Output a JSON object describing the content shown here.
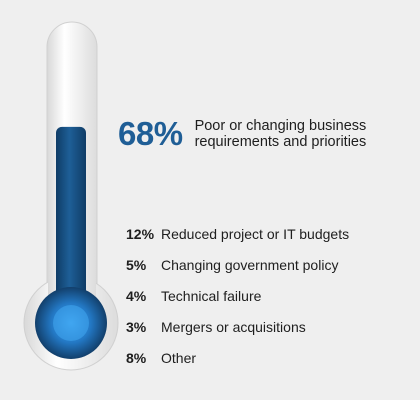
{
  "chart_data": {
    "type": "thermometer",
    "headline": {
      "value": 68,
      "label_pct": "68%",
      "label": "Poor or changing business requirements and priorities"
    },
    "items": [
      {
        "value": 12,
        "label_pct": "12%",
        "label": "Reduced project or IT budgets"
      },
      {
        "value": 5,
        "label_pct": "5%",
        "label": "Changing government policy"
      },
      {
        "value": 4,
        "label_pct": "4%",
        "label": "Technical failure"
      },
      {
        "value": 3,
        "label_pct": "3%",
        "label": "Mergers or acquisitions"
      },
      {
        "value": 8,
        "label_pct": "8%",
        "label": "Other"
      }
    ],
    "fill_fraction": 0.68,
    "colors": {
      "fill": "#1b5a8f",
      "fill_dark": "#0f3c66",
      "bulb_glow": "#3a9ce8",
      "tube": "#ffffff",
      "background": "#efefef",
      "headline": "#1f5e96"
    }
  }
}
